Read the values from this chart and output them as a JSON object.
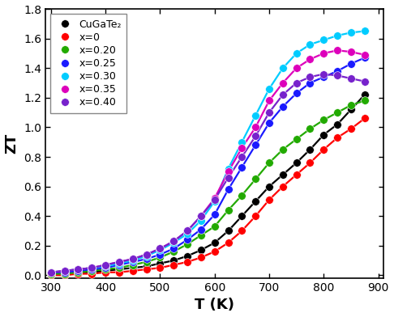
{
  "title": "",
  "xlabel": "T (K)",
  "ylabel": "ZT",
  "xlim": [
    290,
    910
  ],
  "ylim": [
    -0.02,
    1.8
  ],
  "xticks": [
    300,
    400,
    500,
    600,
    700,
    800,
    900
  ],
  "yticks": [
    0.0,
    0.2,
    0.4,
    0.6,
    0.8,
    1.0,
    1.2,
    1.4,
    1.6,
    1.8
  ],
  "series": [
    {
      "label": "CuGaTe₂",
      "color": "#000000",
      "T": [
        300,
        325,
        350,
        375,
        400,
        425,
        450,
        475,
        500,
        525,
        550,
        575,
        600,
        625,
        650,
        675,
        700,
        725,
        750,
        775,
        800,
        825,
        850,
        875
      ],
      "ZT": [
        0.01,
        0.01,
        0.02,
        0.02,
        0.03,
        0.04,
        0.05,
        0.06,
        0.08,
        0.1,
        0.13,
        0.17,
        0.22,
        0.3,
        0.4,
        0.5,
        0.6,
        0.68,
        0.76,
        0.85,
        0.95,
        1.02,
        1.12,
        1.22
      ]
    },
    {
      "label": "x=0",
      "color": "#ff0000",
      "T": [
        300,
        325,
        350,
        375,
        400,
        425,
        450,
        475,
        500,
        525,
        550,
        575,
        600,
        625,
        650,
        675,
        700,
        725,
        750,
        775,
        800,
        825,
        850,
        875
      ],
      "ZT": [
        0.0,
        0.0,
        0.01,
        0.01,
        0.02,
        0.02,
        0.03,
        0.04,
        0.05,
        0.07,
        0.09,
        0.12,
        0.16,
        0.22,
        0.3,
        0.4,
        0.51,
        0.6,
        0.68,
        0.76,
        0.85,
        0.93,
        0.99,
        1.06
      ]
    },
    {
      "label": "x=0.20",
      "color": "#22aa00",
      "T": [
        300,
        325,
        350,
        375,
        400,
        425,
        450,
        475,
        500,
        525,
        550,
        575,
        600,
        625,
        650,
        675,
        700,
        725,
        750,
        775,
        800,
        825,
        850,
        875
      ],
      "ZT": [
        0.01,
        0.01,
        0.02,
        0.03,
        0.04,
        0.05,
        0.07,
        0.09,
        0.12,
        0.16,
        0.21,
        0.27,
        0.33,
        0.44,
        0.54,
        0.65,
        0.76,
        0.85,
        0.92,
        0.99,
        1.05,
        1.1,
        1.15,
        1.18
      ]
    },
    {
      "label": "x=0.25",
      "color": "#1a1aff",
      "T": [
        300,
        325,
        350,
        375,
        400,
        425,
        450,
        475,
        500,
        525,
        550,
        575,
        600,
        625,
        650,
        675,
        700,
        725,
        750,
        775,
        800,
        825,
        850,
        875
      ],
      "ZT": [
        0.02,
        0.02,
        0.03,
        0.04,
        0.05,
        0.07,
        0.09,
        0.11,
        0.14,
        0.18,
        0.24,
        0.31,
        0.41,
        0.58,
        0.73,
        0.88,
        1.03,
        1.14,
        1.23,
        1.3,
        1.34,
        1.38,
        1.43,
        1.47
      ]
    },
    {
      "label": "x=0.30",
      "color": "#00ccff",
      "T": [
        300,
        325,
        350,
        375,
        400,
        425,
        450,
        475,
        500,
        525,
        550,
        575,
        600,
        625,
        650,
        675,
        700,
        725,
        750,
        775,
        800,
        825,
        850,
        875
      ],
      "ZT": [
        0.02,
        0.03,
        0.04,
        0.05,
        0.06,
        0.08,
        0.1,
        0.13,
        0.17,
        0.22,
        0.28,
        0.37,
        0.5,
        0.72,
        0.9,
        1.08,
        1.26,
        1.4,
        1.5,
        1.56,
        1.59,
        1.62,
        1.64,
        1.65
      ]
    },
    {
      "label": "x=0.35",
      "color": "#dd00bb",
      "T": [
        300,
        325,
        350,
        375,
        400,
        425,
        450,
        475,
        500,
        525,
        550,
        575,
        600,
        625,
        650,
        675,
        700,
        725,
        750,
        775,
        800,
        825,
        850,
        875
      ],
      "ZT": [
        0.02,
        0.03,
        0.04,
        0.05,
        0.07,
        0.09,
        0.11,
        0.14,
        0.18,
        0.23,
        0.3,
        0.4,
        0.52,
        0.7,
        0.86,
        1.0,
        1.18,
        1.3,
        1.4,
        1.46,
        1.5,
        1.52,
        1.51,
        1.49
      ]
    },
    {
      "label": "x=0.40",
      "color": "#7722cc",
      "T": [
        300,
        325,
        350,
        375,
        400,
        425,
        450,
        475,
        500,
        525,
        550,
        575,
        600,
        625,
        650,
        675,
        700,
        725,
        750,
        775,
        800,
        825,
        850,
        875
      ],
      "ZT": [
        0.02,
        0.03,
        0.04,
        0.05,
        0.07,
        0.09,
        0.11,
        0.14,
        0.18,
        0.23,
        0.3,
        0.4,
        0.51,
        0.66,
        0.8,
        0.94,
        1.1,
        1.22,
        1.3,
        1.34,
        1.36,
        1.35,
        1.33,
        1.31
      ]
    }
  ],
  "background_color": "#ffffff",
  "marker": "o",
  "markersize": 7,
  "linewidth": 1.6,
  "legend_fontsize": 9,
  "axis_label_fontsize": 13,
  "tick_fontsize": 10
}
